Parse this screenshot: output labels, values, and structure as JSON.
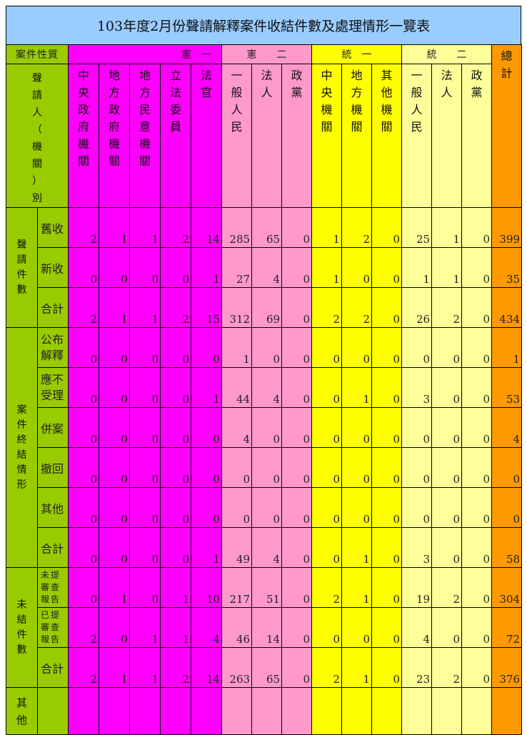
{
  "title": "103年度2月份聲請解釋案件收結件數及處理情形一覽表",
  "colors": {
    "title_bg": "#99ccff",
    "label_bg": "#99cc00",
    "xian1": "#ff00ff",
    "xian2": "#ff99cc",
    "tong1": "#ffff00",
    "tong2": "#ffff99",
    "total": "#ff9900"
  },
  "header": {
    "corner": "案件性質",
    "applicant": "聲請人（機關）別",
    "groups": [
      "憲　一",
      "憲　　二",
      "統　一",
      "統　　二"
    ],
    "total": "總計",
    "columns": [
      "中央政府機關",
      "地方政府機關",
      "地方民意機關",
      "立法委員",
      "法官",
      "一般人民",
      "法人",
      "政黨",
      "中央機關",
      "地方機關",
      "其他機關",
      "一般人民",
      "法人",
      "政黨"
    ]
  },
  "sections": [
    {
      "label": "聲請件數",
      "rows": [
        {
          "label": "舊收",
          "values": [
            2,
            1,
            1,
            2,
            14,
            285,
            65,
            0,
            1,
            2,
            0,
            25,
            1,
            0,
            399
          ]
        },
        {
          "label": "新收",
          "values": [
            0,
            0,
            0,
            0,
            1,
            27,
            4,
            0,
            1,
            0,
            0,
            1,
            1,
            0,
            35
          ]
        },
        {
          "label": "合計",
          "values": [
            2,
            1,
            1,
            2,
            15,
            312,
            69,
            0,
            2,
            2,
            0,
            26,
            2,
            0,
            434
          ]
        }
      ]
    },
    {
      "label": "案件終結情形",
      "rows": [
        {
          "label": "公布解釋",
          "values": [
            0,
            0,
            0,
            0,
            0,
            1,
            0,
            0,
            0,
            0,
            0,
            0,
            0,
            0,
            1
          ]
        },
        {
          "label": "應不受理",
          "values": [
            0,
            0,
            0,
            0,
            1,
            44,
            4,
            0,
            0,
            1,
            0,
            3,
            0,
            0,
            53
          ]
        },
        {
          "label": "併案",
          "values": [
            0,
            0,
            0,
            0,
            0,
            4,
            0,
            0,
            0,
            0,
            0,
            0,
            0,
            0,
            4
          ]
        },
        {
          "label": "撤回",
          "values": [
            0,
            0,
            0,
            0,
            0,
            0,
            0,
            0,
            0,
            0,
            0,
            0,
            0,
            0,
            0
          ]
        },
        {
          "label": "其他",
          "values": [
            0,
            0,
            0,
            0,
            0,
            0,
            0,
            0,
            0,
            0,
            0,
            0,
            0,
            0,
            0
          ]
        },
        {
          "label": "合計",
          "values": [
            0,
            0,
            0,
            0,
            1,
            49,
            4,
            0,
            0,
            1,
            0,
            3,
            0,
            0,
            58
          ]
        }
      ]
    },
    {
      "label": "未結件數",
      "rows": [
        {
          "label": "未提審查報告",
          "small": true,
          "values": [
            0,
            1,
            0,
            1,
            10,
            217,
            51,
            0,
            2,
            1,
            0,
            19,
            2,
            0,
            304
          ]
        },
        {
          "label": "已提審查報告",
          "small": true,
          "values": [
            2,
            0,
            1,
            1,
            4,
            46,
            14,
            0,
            0,
            0,
            0,
            4,
            0,
            0,
            72
          ]
        },
        {
          "label": "合計",
          "values": [
            2,
            1,
            1,
            2,
            14,
            263,
            65,
            0,
            2,
            1,
            0,
            23,
            2,
            0,
            376
          ]
        }
      ]
    },
    {
      "label": "其他",
      "rows": [
        {
          "label": "",
          "values": []
        }
      ]
    }
  ]
}
